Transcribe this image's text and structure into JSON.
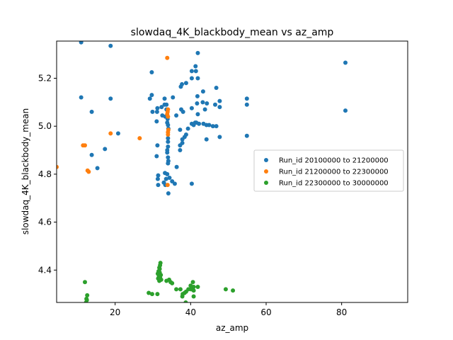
{
  "chart_data": {
    "type": "scatter",
    "title": "slowdaq_4K_blackbody_mean vs az_amp",
    "xlabel": "az_amp",
    "ylabel": "slowdaq_4K_blackbody_mean",
    "xlim": [
      4.5,
      97.5
    ],
    "ylim": [
      4.265,
      5.355
    ],
    "xticks": [
      20,
      40,
      60,
      80
    ],
    "yticks": [
      4.4,
      4.6,
      4.8,
      5.0,
      5.2
    ],
    "xtick_labels": [
      "20",
      "40",
      "60",
      "80"
    ],
    "ytick_labels": [
      "4.4",
      "4.6",
      "4.8",
      "5.0",
      "5.2"
    ],
    "grid": false,
    "legend_position": "center-right",
    "series": [
      {
        "name": "Run_id 20100000 to 21200000",
        "color": "#1f77b4",
        "points": [
          [
            11,
            5.35
          ],
          [
            18.8,
            5.335
          ],
          [
            41.9,
            5.305
          ],
          [
            81,
            5.265
          ],
          [
            29.7,
            5.225
          ],
          [
            40.3,
            5.23
          ],
          [
            41.4,
            5.23
          ],
          [
            41.3,
            5.25
          ],
          [
            40.3,
            5.2
          ],
          [
            41.9,
            5.2
          ],
          [
            38.8,
            5.18
          ],
          [
            37.7,
            5.175
          ],
          [
            37.4,
            5.165
          ],
          [
            46.8,
            5.16
          ],
          [
            43.3,
            5.145
          ],
          [
            41.8,
            5.125
          ],
          [
            11,
            5.12
          ],
          [
            29.2,
            5.115
          ],
          [
            18.8,
            5.115
          ],
          [
            33.1,
            5.115
          ],
          [
            54.9,
            5.115
          ],
          [
            29.7,
            5.13
          ],
          [
            35.3,
            5.12
          ],
          [
            47.7,
            5.105
          ],
          [
            41.7,
            5.095
          ],
          [
            43.2,
            5.1
          ],
          [
            44.3,
            5.095
          ],
          [
            54.9,
            5.09
          ],
          [
            46.5,
            5.09
          ],
          [
            33.6,
            5.09
          ],
          [
            33.1,
            5.09
          ],
          [
            31.2,
            5.075
          ],
          [
            32.3,
            5.08
          ],
          [
            33.6,
            5.07
          ],
          [
            40.3,
            5.075
          ],
          [
            47.7,
            5.08
          ],
          [
            29.9,
            5.06
          ],
          [
            31.1,
            5.06
          ],
          [
            13.8,
            5.06
          ],
          [
            37.5,
            5.07
          ],
          [
            43.8,
            5.07
          ],
          [
            32.5,
            5.045
          ],
          [
            33.3,
            5.04
          ],
          [
            36.2,
            5.045
          ],
          [
            38.0,
            5.06
          ],
          [
            81,
            5.065
          ],
          [
            41.9,
            5.05
          ],
          [
            33.9,
            5.03
          ],
          [
            33.8,
            5.015
          ],
          [
            34.0,
            5.005
          ],
          [
            34.1,
            4.99
          ],
          [
            31.0,
            5.02
          ],
          [
            41.2,
            5.015
          ],
          [
            40.3,
            5.01
          ],
          [
            42.2,
            5.01
          ],
          [
            43.4,
            5.01
          ],
          [
            44.2,
            5.005
          ],
          [
            44.9,
            5.005
          ],
          [
            45.9,
            5.0
          ],
          [
            46.8,
            5.0
          ],
          [
            40.8,
            5.005
          ],
          [
            41.5,
            5.015
          ],
          [
            39.3,
            4.99
          ],
          [
            37.2,
            4.985
          ],
          [
            20.8,
            4.97
          ],
          [
            38.8,
            4.965
          ],
          [
            38.4,
            4.955
          ],
          [
            54.9,
            4.96
          ],
          [
            47.7,
            4.955
          ],
          [
            44.2,
            4.945
          ],
          [
            37.8,
            4.945
          ],
          [
            34.0,
            4.95
          ],
          [
            34.0,
            4.935
          ],
          [
            37.8,
            4.93
          ],
          [
            37.2,
            4.92
          ],
          [
            31.2,
            4.92
          ],
          [
            34.0,
            4.915
          ],
          [
            33.8,
            4.9
          ],
          [
            37.2,
            4.9
          ],
          [
            33.8,
            4.89
          ],
          [
            17.3,
            4.905
          ],
          [
            13.8,
            4.88
          ],
          [
            31.0,
            4.875
          ],
          [
            34.0,
            4.87
          ],
          [
            34.1,
            4.855
          ],
          [
            34.0,
            4.845
          ],
          [
            36.3,
            4.83
          ],
          [
            15.3,
            4.825
          ],
          [
            33.2,
            4.805
          ],
          [
            31.4,
            4.795
          ],
          [
            31.3,
            4.78
          ],
          [
            33.8,
            4.8
          ],
          [
            34.4,
            4.785
          ],
          [
            33.5,
            4.78
          ],
          [
            35.1,
            4.77
          ],
          [
            32.9,
            4.765
          ],
          [
            35.8,
            4.76
          ],
          [
            31.4,
            4.755
          ],
          [
            40.3,
            4.76
          ],
          [
            33.3,
            4.755
          ],
          [
            34.1,
            4.72
          ]
        ]
      },
      {
        "name": "Run_id 21200000 to 22300000",
        "color": "#ff7f0e",
        "points": [
          [
            33.8,
            5.285
          ],
          [
            34.0,
            5.07
          ],
          [
            33.9,
            5.06
          ],
          [
            33.8,
            5.05
          ],
          [
            34.0,
            5.04
          ],
          [
            34.1,
            4.985
          ],
          [
            34.0,
            4.975
          ],
          [
            34.0,
            4.965
          ],
          [
            18.8,
            4.97
          ],
          [
            26.5,
            4.95
          ],
          [
            11.5,
            4.92
          ],
          [
            12.0,
            4.92
          ],
          [
            4.5,
            4.83
          ],
          [
            12.7,
            4.815
          ],
          [
            13.0,
            4.81
          ],
          [
            33.9,
            4.755
          ]
        ]
      },
      {
        "name": "Run_id 22300000 to 30000000",
        "color": "#2ca02c",
        "points": [
          [
            32.0,
            4.43
          ],
          [
            31.9,
            4.42
          ],
          [
            31.7,
            4.41
          ],
          [
            31.8,
            4.405
          ],
          [
            31.5,
            4.395
          ],
          [
            31.8,
            4.39
          ],
          [
            31.3,
            4.385
          ],
          [
            32.1,
            4.38
          ],
          [
            31.6,
            4.375
          ],
          [
            31.9,
            4.37
          ],
          [
            31.4,
            4.365
          ],
          [
            32.2,
            4.36
          ],
          [
            31.7,
            4.355
          ],
          [
            34.3,
            4.36
          ],
          [
            33.6,
            4.355
          ],
          [
            34.7,
            4.35
          ],
          [
            35.1,
            4.345
          ],
          [
            40.6,
            4.35
          ],
          [
            40.8,
            4.33
          ],
          [
            40.0,
            4.335
          ],
          [
            39.4,
            4.32
          ],
          [
            38.8,
            4.31
          ],
          [
            37.8,
            4.29
          ],
          [
            37.3,
            4.32
          ],
          [
            41.9,
            4.33
          ],
          [
            40.1,
            4.32
          ],
          [
            40.8,
            4.315
          ],
          [
            38.4,
            4.305
          ],
          [
            37.9,
            4.3
          ],
          [
            36.2,
            4.32
          ],
          [
            28.9,
            4.305
          ],
          [
            29.8,
            4.3
          ],
          [
            31.2,
            4.3
          ],
          [
            12.0,
            4.35
          ],
          [
            12.6,
            4.295
          ],
          [
            12.4,
            4.28
          ],
          [
            12.5,
            4.275
          ],
          [
            12.3,
            4.265
          ],
          [
            49.3,
            4.32
          ],
          [
            51.2,
            4.315
          ],
          [
            38.7,
            4.265
          ],
          [
            40.8,
            4.29
          ]
        ]
      }
    ]
  }
}
